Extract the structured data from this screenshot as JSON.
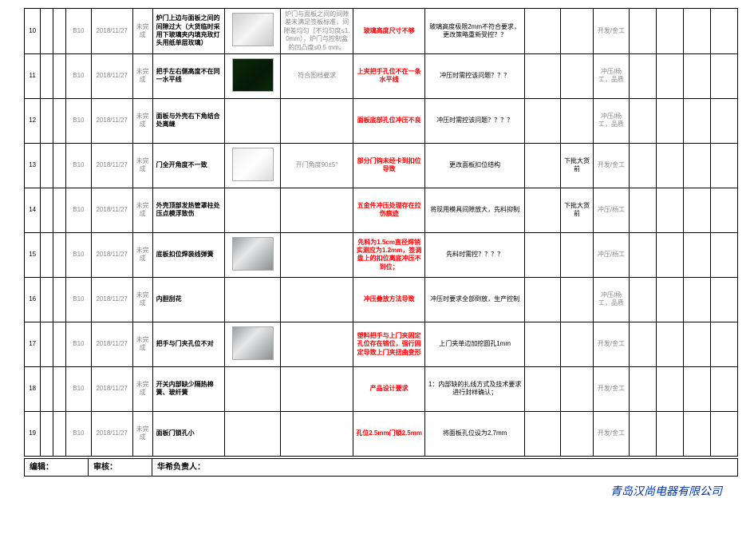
{
  "colors": {
    "border": "#000000",
    "text": "#000000",
    "red": "#ff0000",
    "gray": "#888888",
    "company": "#0033aa"
  },
  "rows": [
    {
      "num": "10",
      "code": "B10",
      "date": "2018/11/27",
      "status": "未完成",
      "desc": "炉门上边与面板之间的间隙过大（大货临时采用下玻璃夹内填充玫灯头用纸单层玫璃）",
      "img": "oven",
      "note": "炉门与面板之间的间隙差未满足签板标准，间隙差均匀（不均匀度≤1.0mm），炉门与控制盒的凹凸度≤0.5 mm。",
      "cause": "玻璃高度尺寸不够",
      "action": "玻璃高度极限2mm不符合要求，更改策略重新受控？？",
      "due": "",
      "dep": "开发/金工"
    },
    {
      "num": "11",
      "code": "B10",
      "date": "2018/11/27",
      "status": "未完成",
      "desc": "把手左右侧高度不在同一水平线",
      "img": "dark",
      "note": "符合图档要求",
      "cause": "上夹把手孔位不在一条水平线",
      "action": "冲压时需控该问题？？？",
      "due": "",
      "dep": "冲压/杨工，品质"
    },
    {
      "num": "12",
      "code": "B10",
      "date": "2018/11/27",
      "status": "未完成",
      "desc": "面板与外壳右下角结合处离缝",
      "img": "",
      "note": "",
      "cause": "面板底部孔位冲压不良",
      "action": "冲压时需控该问题？？？？",
      "due": "",
      "dep": "冲压/杨工，品质"
    },
    {
      "num": "13",
      "code": "B10",
      "date": "2018/11/27",
      "status": "未完成",
      "desc": "门全开角度不一致",
      "img": "white",
      "note": "开门角度90±5°",
      "cause": "部分门钩未经卡到扣位导致",
      "action": "更改面板扣位结构",
      "due": "下批大货前",
      "dep": "开发/金工"
    },
    {
      "num": "14",
      "code": "B10",
      "date": "2018/11/27",
      "status": "未完成",
      "desc": "外壳顶部发热管罩柱处压点模浮致伤",
      "img": "",
      "note": "",
      "cause": "五金件冲压处理存在拉伤痕迹",
      "action": "将现用模具间隙放大，先料抑制",
      "due": "下批大货前",
      "dep": "冲压/杨工"
    },
    {
      "num": "15",
      "code": "B10",
      "date": "2018/11/27",
      "status": "未完成",
      "desc": "底板扣位焊装线弹簧",
      "img": "steel",
      "note": "",
      "cause": "先料为1.5cm直径焊销实测应为1.2mm，签调盘上的扣位离底冲压不到位；",
      "action": "先料时需控？？？？",
      "due": "",
      "dep": "冲压/杨工"
    },
    {
      "num": "16",
      "code": "B10",
      "date": "2018/11/27",
      "status": "未完成",
      "desc": "内胆刮花",
      "img": "",
      "note": "",
      "cause": "冲压叠放方法导致",
      "action": "冲压时要求全部倒放，生产控制",
      "due": "",
      "dep": "冲压/杨工，品质"
    },
    {
      "num": "17",
      "code": "B10",
      "date": "2018/11/27",
      "status": "未完成",
      "desc": "把手与门夹孔位不对",
      "img": "steel",
      "note": "",
      "cause": "塑料把手与上门夹固定孔位存在错位，强行固定导致上门夹扭曲变形",
      "action": "上门夹单边加挖圆孔1mm",
      "due": "",
      "dep": "开发/金工"
    },
    {
      "num": "18",
      "code": "B10",
      "date": "2018/11/27",
      "status": "未完成",
      "desc": "开关内部缺少隔热棉簧、玻纤簧",
      "img": "",
      "note": "",
      "cause": "产品设计要求",
      "action": "1：内部缺的扎线方式及技术要求进行封样确认；",
      "due": "",
      "dep": "开发/金工"
    },
    {
      "num": "19",
      "code": "B10",
      "date": "2018/11/27",
      "status": "未完成",
      "desc": "面板门锁孔小",
      "img": "",
      "note": "",
      "cause": "孔位2.5mm门锁2.5mm",
      "action": "将面板孔位设为2.7mm",
      "due": "",
      "dep": "开发/金工"
    }
  ],
  "footer": {
    "edit": "编辑：",
    "review": "审核：",
    "owner": "华希负责人：",
    "company": "青岛汉尚电器有限公司"
  }
}
